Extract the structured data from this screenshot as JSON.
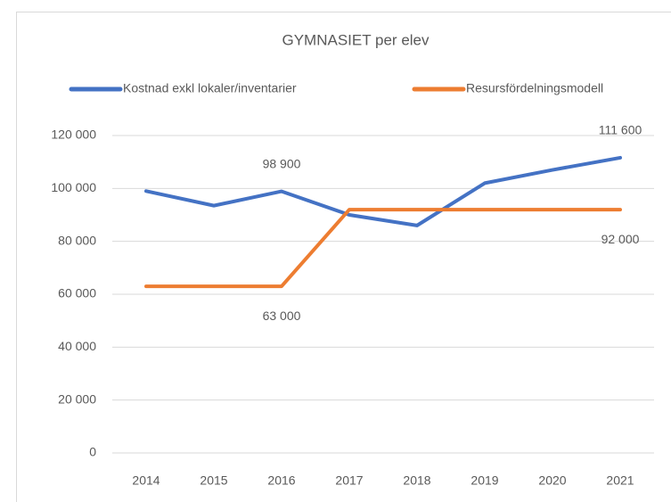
{
  "chart_data": {
    "type": "line",
    "title": "GYMNASIET per elev",
    "categories": [
      "2014",
      "2015",
      "2016",
      "2017",
      "2018",
      "2019",
      "2020",
      "2021"
    ],
    "series": [
      {
        "name": "Kostnad exkl lokaler/inventarier",
        "color": "#4472c4",
        "values": [
          99000,
          93500,
          98900,
          90000,
          86000,
          102000,
          107000,
          111600
        ],
        "value_labels": [
          null,
          null,
          "98 900",
          null,
          null,
          null,
          null,
          "111 600"
        ]
      },
      {
        "name": "Resursfördelningsmodell",
        "color": "#ed7d31",
        "values": [
          63000,
          63000,
          63000,
          92000,
          92000,
          92000,
          92000,
          92000
        ],
        "value_labels": [
          null,
          null,
          "63 000",
          null,
          null,
          null,
          null,
          "92 000"
        ]
      }
    ],
    "ylim": [
      0,
      120000
    ],
    "yticks": [
      0,
      {
        "value": 20000,
        "label": "20 000"
      },
      {
        "value": 40000,
        "label": "40 000"
      },
      {
        "value": 60000,
        "label": "60 000"
      },
      {
        "value": 80000,
        "label": "80 000"
      },
      {
        "value": 100000,
        "label": "100 000"
      },
      {
        "value": 120000,
        "label": "120 000"
      }
    ],
    "grid": true,
    "legend": "top"
  }
}
